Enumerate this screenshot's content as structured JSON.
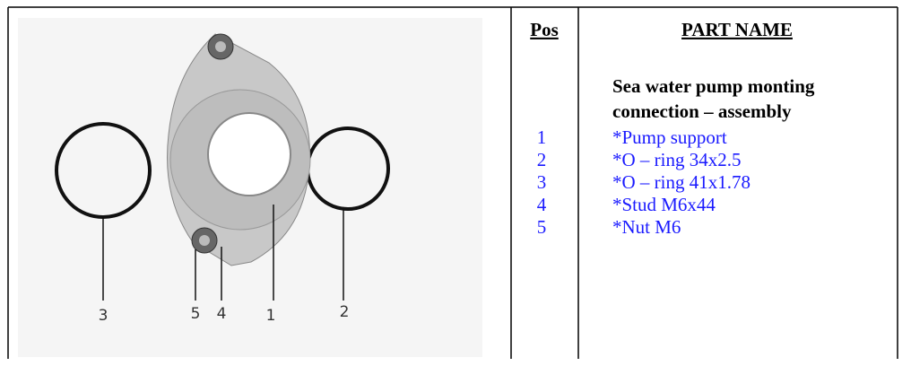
{
  "header": {
    "pos": "Pos",
    "part_name": "PART NAME"
  },
  "assembly_title": [
    "Sea water pump monting",
    "connection – assembly"
  ],
  "rows": [
    [
      "1",
      "*Pump support"
    ],
    [
      "2",
      "*O – ring  34x2.5"
    ],
    [
      "3",
      "*O – ring  41x1.78"
    ],
    [
      "4",
      "*Stud  M6x44"
    ],
    [
      "5",
      "*Nut  M6"
    ]
  ],
  "figure": {
    "labels": [
      "3",
      "5",
      "4",
      "1",
      "2"
    ]
  }
}
